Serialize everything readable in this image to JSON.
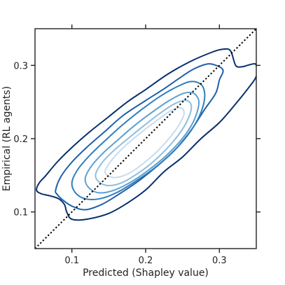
{
  "chart_data": {
    "type": "contour",
    "xlabel": "Predicted (Shapley value)",
    "ylabel": "Empirical (RL agents)",
    "xlim": [
      0.05,
      0.35
    ],
    "ylim": [
      0.05,
      0.35
    ],
    "xticks": [
      0.1,
      0.2,
      0.3
    ],
    "yticks": [
      0.1,
      0.2,
      0.3
    ],
    "xtick_labels": [
      "0.1",
      "0.2",
      "0.3"
    ],
    "ytick_labels": [
      "0.1",
      "0.2",
      "0.3"
    ],
    "grid": false,
    "ticks_on_all_sides": true,
    "reference_line": {
      "style": "dotted",
      "color": "#000000",
      "from": [
        0.05,
        0.05
      ],
      "to": [
        0.35,
        0.35
      ]
    },
    "contours": [
      {
        "level": 1,
        "color": "#08306b",
        "points": [
          [
            0.052,
            0.13
          ],
          [
            0.056,
            0.14
          ],
          [
            0.065,
            0.15
          ],
          [
            0.08,
            0.168
          ],
          [
            0.1,
            0.188
          ],
          [
            0.125,
            0.21
          ],
          [
            0.15,
            0.23
          ],
          [
            0.175,
            0.25
          ],
          [
            0.2,
            0.267
          ],
          [
            0.23,
            0.288
          ],
          [
            0.26,
            0.305
          ],
          [
            0.29,
            0.318
          ],
          [
            0.305,
            0.322
          ],
          [
            0.315,
            0.32
          ],
          [
            0.322,
            0.3
          ],
          [
            0.33,
            0.298
          ],
          [
            0.338,
            0.3
          ],
          [
            0.346,
            0.302
          ],
          [
            0.35,
            0.3
          ],
          [
            0.35,
            0.285
          ],
          [
            0.34,
            0.27
          ],
          [
            0.32,
            0.245
          ],
          [
            0.3,
            0.222
          ],
          [
            0.275,
            0.2
          ],
          [
            0.25,
            0.175
          ],
          [
            0.225,
            0.155
          ],
          [
            0.2,
            0.13
          ],
          [
            0.175,
            0.112
          ],
          [
            0.15,
            0.098
          ],
          [
            0.12,
            0.09
          ],
          [
            0.1,
            0.09
          ],
          [
            0.093,
            0.1
          ],
          [
            0.09,
            0.11
          ],
          [
            0.082,
            0.118
          ],
          [
            0.07,
            0.122
          ],
          [
            0.058,
            0.125
          ],
          [
            0.052,
            0.13
          ]
        ]
      },
      {
        "level": 2,
        "color": "#1f5fa8",
        "points": [
          [
            0.078,
            0.13
          ],
          [
            0.085,
            0.148
          ],
          [
            0.1,
            0.168
          ],
          [
            0.12,
            0.188
          ],
          [
            0.145,
            0.21
          ],
          [
            0.17,
            0.232
          ],
          [
            0.2,
            0.252
          ],
          [
            0.225,
            0.268
          ],
          [
            0.245,
            0.282
          ],
          [
            0.265,
            0.295
          ],
          [
            0.285,
            0.302
          ],
          [
            0.3,
            0.298
          ],
          [
            0.305,
            0.292
          ],
          [
            0.3,
            0.28
          ],
          [
            0.295,
            0.262
          ],
          [
            0.28,
            0.24
          ],
          [
            0.262,
            0.212
          ],
          [
            0.24,
            0.185
          ],
          [
            0.215,
            0.162
          ],
          [
            0.19,
            0.142
          ],
          [
            0.165,
            0.125
          ],
          [
            0.14,
            0.11
          ],
          [
            0.118,
            0.103
          ],
          [
            0.1,
            0.108
          ],
          [
            0.088,
            0.116
          ],
          [
            0.08,
            0.124
          ],
          [
            0.078,
            0.13
          ]
        ]
      },
      {
        "level": 3,
        "color": "#2e7ebc",
        "points": [
          [
            0.1,
            0.14
          ],
          [
            0.108,
            0.158
          ],
          [
            0.125,
            0.178
          ],
          [
            0.148,
            0.2
          ],
          [
            0.17,
            0.22
          ],
          [
            0.195,
            0.24
          ],
          [
            0.22,
            0.258
          ],
          [
            0.245,
            0.272
          ],
          [
            0.262,
            0.278
          ],
          [
            0.275,
            0.274
          ],
          [
            0.28,
            0.262
          ],
          [
            0.278,
            0.245
          ],
          [
            0.27,
            0.225
          ],
          [
            0.255,
            0.202
          ],
          [
            0.235,
            0.18
          ],
          [
            0.212,
            0.16
          ],
          [
            0.188,
            0.143
          ],
          [
            0.162,
            0.127
          ],
          [
            0.138,
            0.118
          ],
          [
            0.118,
            0.118
          ],
          [
            0.105,
            0.126
          ],
          [
            0.1,
            0.14
          ]
        ]
      },
      {
        "level": 4,
        "color": "#5b9fd0",
        "points": [
          [
            0.118,
            0.145
          ],
          [
            0.126,
            0.162
          ],
          [
            0.142,
            0.18
          ],
          [
            0.162,
            0.198
          ],
          [
            0.185,
            0.218
          ],
          [
            0.21,
            0.237
          ],
          [
            0.232,
            0.252
          ],
          [
            0.252,
            0.262
          ],
          [
            0.265,
            0.262
          ],
          [
            0.272,
            0.252
          ],
          [
            0.27,
            0.237
          ],
          [
            0.262,
            0.218
          ],
          [
            0.248,
            0.198
          ],
          [
            0.228,
            0.177
          ],
          [
            0.205,
            0.158
          ],
          [
            0.182,
            0.142
          ],
          [
            0.158,
            0.13
          ],
          [
            0.138,
            0.126
          ],
          [
            0.124,
            0.132
          ],
          [
            0.118,
            0.145
          ]
        ]
      },
      {
        "level": 5,
        "color": "#8fbedd",
        "points": [
          [
            0.132,
            0.15
          ],
          [
            0.14,
            0.166
          ],
          [
            0.156,
            0.183
          ],
          [
            0.176,
            0.2
          ],
          [
            0.198,
            0.218
          ],
          [
            0.22,
            0.235
          ],
          [
            0.24,
            0.248
          ],
          [
            0.256,
            0.252
          ],
          [
            0.262,
            0.244
          ],
          [
            0.258,
            0.228
          ],
          [
            0.248,
            0.21
          ],
          [
            0.232,
            0.19
          ],
          [
            0.212,
            0.17
          ],
          [
            0.19,
            0.153
          ],
          [
            0.168,
            0.14
          ],
          [
            0.15,
            0.136
          ],
          [
            0.138,
            0.14
          ],
          [
            0.132,
            0.15
          ]
        ]
      },
      {
        "level": 6,
        "color": "#c6dcef",
        "points": [
          [
            0.145,
            0.156
          ],
          [
            0.155,
            0.172
          ],
          [
            0.172,
            0.19
          ],
          [
            0.192,
            0.207
          ],
          [
            0.214,
            0.224
          ],
          [
            0.234,
            0.238
          ],
          [
            0.248,
            0.242
          ],
          [
            0.252,
            0.234
          ],
          [
            0.246,
            0.22
          ],
          [
            0.234,
            0.203
          ],
          [
            0.218,
            0.185
          ],
          [
            0.198,
            0.167
          ],
          [
            0.178,
            0.153
          ],
          [
            0.16,
            0.147
          ],
          [
            0.15,
            0.149
          ],
          [
            0.145,
            0.156
          ]
        ]
      }
    ]
  }
}
